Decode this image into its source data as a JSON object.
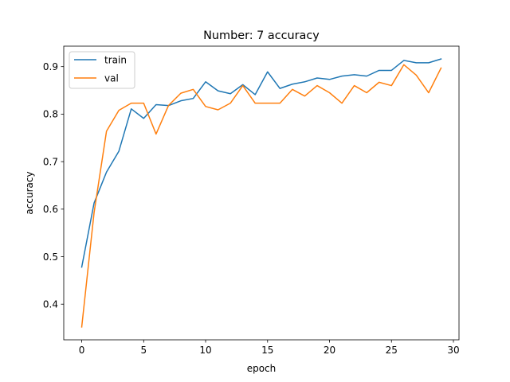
{
  "chart_data": {
    "type": "line",
    "title": "Number: 7 accuracy",
    "xlabel": "epoch",
    "ylabel": "accuracy",
    "xlim": [
      -1.45,
      30.45
    ],
    "ylim": [
      0.325,
      0.943
    ],
    "xticks": [
      0,
      5,
      10,
      15,
      20,
      25,
      30
    ],
    "yticks": [
      0.4,
      0.5,
      0.6,
      0.7,
      0.8,
      0.9
    ],
    "grid": false,
    "legend_position": "upper left",
    "x": [
      0,
      1,
      2,
      3,
      4,
      5,
      6,
      7,
      8,
      9,
      10,
      11,
      12,
      13,
      14,
      15,
      16,
      17,
      18,
      19,
      20,
      21,
      22,
      23,
      24,
      25,
      26,
      27,
      28,
      29
    ],
    "series": [
      {
        "name": "train",
        "color": "#1f77b4",
        "values": [
          0.478,
          0.613,
          0.678,
          0.722,
          0.811,
          0.791,
          0.82,
          0.818,
          0.828,
          0.833,
          0.868,
          0.849,
          0.843,
          0.862,
          0.841,
          0.889,
          0.854,
          0.863,
          0.868,
          0.876,
          0.873,
          0.88,
          0.883,
          0.88,
          0.892,
          0.892,
          0.913,
          0.908,
          0.908,
          0.916
        ]
      },
      {
        "name": "val",
        "color": "#ff7f0e",
        "values": [
          0.352,
          0.593,
          0.764,
          0.808,
          0.823,
          0.823,
          0.758,
          0.818,
          0.844,
          0.852,
          0.816,
          0.809,
          0.823,
          0.86,
          0.823,
          0.823,
          0.823,
          0.852,
          0.838,
          0.86,
          0.845,
          0.823,
          0.86,
          0.845,
          0.867,
          0.86,
          0.904,
          0.882,
          0.845,
          0.897
        ]
      }
    ]
  }
}
